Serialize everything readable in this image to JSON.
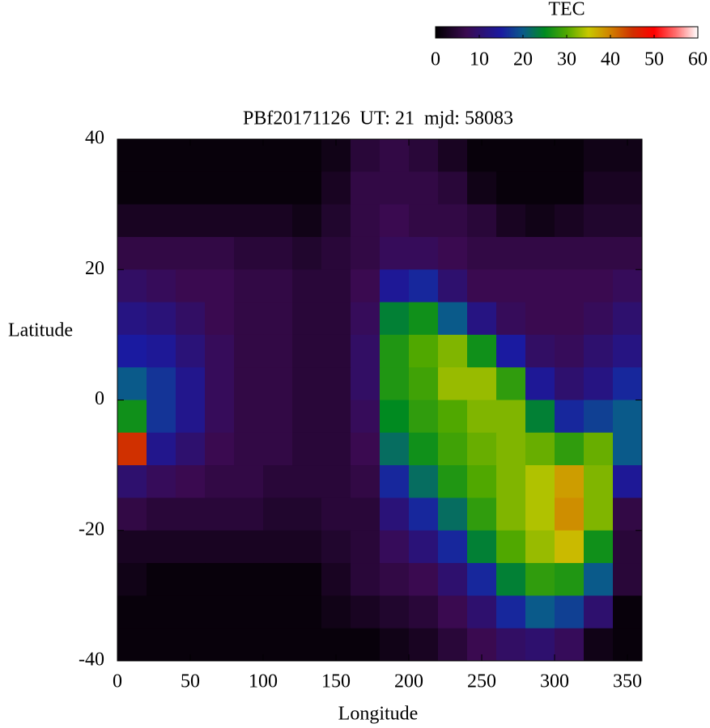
{
  "chart_data": {
    "type": "heatmap",
    "title": "PBf20171126  UT: 21  mjd: 58083",
    "x_label": "Longitude",
    "y_label": "Latitude",
    "xlim": [
      0,
      360
    ],
    "xticks": [
      0,
      50,
      100,
      150,
      200,
      250,
      300,
      350
    ],
    "ylim": [
      -40,
      40
    ],
    "yticks": [
      -40,
      -20,
      0,
      20,
      40
    ],
    "x": [
      10,
      30,
      50,
      70,
      90,
      110,
      130,
      150,
      170,
      190,
      210,
      230,
      250,
      270,
      290,
      310,
      330,
      350
    ],
    "y": [
      37.5,
      32.5,
      27.5,
      22.5,
      17.5,
      12.5,
      7.5,
      2.5,
      -2.5,
      -7.5,
      -12.5,
      -17.5,
      -22.5,
      -27.5,
      -32.5,
      -37.5
    ],
    "z": [
      [
        1,
        1,
        1,
        1,
        1,
        1,
        1,
        2,
        5,
        6,
        5,
        3,
        1,
        1,
        1,
        1,
        2,
        2
      ],
      [
        1,
        1,
        1,
        1,
        1,
        1,
        1,
        3,
        6,
        6,
        6,
        5,
        2,
        1,
        1,
        1,
        3,
        3
      ],
      [
        3,
        3,
        3,
        3,
        3,
        3,
        2,
        4,
        6,
        7,
        6,
        6,
        5,
        3,
        2,
        3,
        4,
        4
      ],
      [
        6,
        6,
        6,
        6,
        5,
        5,
        4,
        5,
        6,
        8,
        8,
        7,
        6,
        6,
        6,
        6,
        6,
        6
      ],
      [
        9,
        8,
        7,
        7,
        6,
        6,
        5,
        5,
        7,
        14,
        16,
        10,
        7,
        7,
        7,
        7,
        7,
        8
      ],
      [
        12,
        11,
        9,
        7,
        6,
        6,
        5,
        5,
        8,
        24,
        26,
        20,
        12,
        8,
        7,
        7,
        8,
        10
      ],
      [
        15,
        14,
        11,
        8,
        6,
        6,
        5,
        5,
        9,
        27,
        30,
        32,
        26,
        15,
        9,
        8,
        10,
        12
      ],
      [
        20,
        17,
        13,
        8,
        6,
        6,
        5,
        5,
        9,
        27,
        29,
        33,
        33,
        28,
        14,
        10,
        12,
        16
      ],
      [
        26,
        17,
        13,
        8,
        6,
        6,
        5,
        5,
        8,
        25,
        28,
        30,
        32,
        32,
        24,
        16,
        18,
        20
      ],
      [
        45,
        13,
        10,
        7,
        6,
        6,
        5,
        5,
        7,
        22,
        26,
        29,
        31,
        32,
        31,
        28,
        31,
        20
      ],
      [
        10,
        8,
        7,
        6,
        6,
        5,
        5,
        5,
        6,
        16,
        22,
        27,
        30,
        32,
        34,
        38,
        32,
        14
      ],
      [
        6,
        5,
        5,
        5,
        5,
        4,
        4,
        5,
        5,
        11,
        16,
        22,
        28,
        32,
        34,
        39,
        32,
        6
      ],
      [
        3,
        3,
        3,
        3,
        3,
        3,
        3,
        4,
        5,
        8,
        11,
        16,
        24,
        30,
        33,
        36,
        26,
        5
      ],
      [
        2,
        1,
        1,
        1,
        1,
        1,
        1,
        3,
        5,
        6,
        7,
        10,
        16,
        24,
        28,
        27,
        20,
        5
      ],
      [
        1,
        1,
        1,
        1,
        1,
        1,
        1,
        2,
        3,
        4,
        5,
        7,
        10,
        16,
        20,
        18,
        10,
        1
      ],
      [
        1,
        1,
        1,
        1,
        1,
        1,
        1,
        1,
        1,
        2,
        3,
        5,
        7,
        9,
        10,
        8,
        2,
        1
      ]
    ],
    "colorbar": {
      "label": "TEC",
      "lim": [
        0,
        60
      ],
      "ticks": [
        0,
        10,
        20,
        30,
        40,
        50,
        60
      ],
      "colorscale": [
        [
          0,
          "#000000"
        ],
        [
          7,
          "#3a0a50"
        ],
        [
          15,
          "#1a1aa0"
        ],
        [
          20,
          "#0a5a8a"
        ],
        [
          25,
          "#008a20"
        ],
        [
          30,
          "#50a800"
        ],
        [
          35,
          "#c8c800"
        ],
        [
          40,
          "#d08000"
        ],
        [
          45,
          "#d03000"
        ],
        [
          50,
          "#ff0000"
        ],
        [
          55,
          "#ff7070"
        ],
        [
          60,
          "#ffffff"
        ]
      ]
    }
  }
}
